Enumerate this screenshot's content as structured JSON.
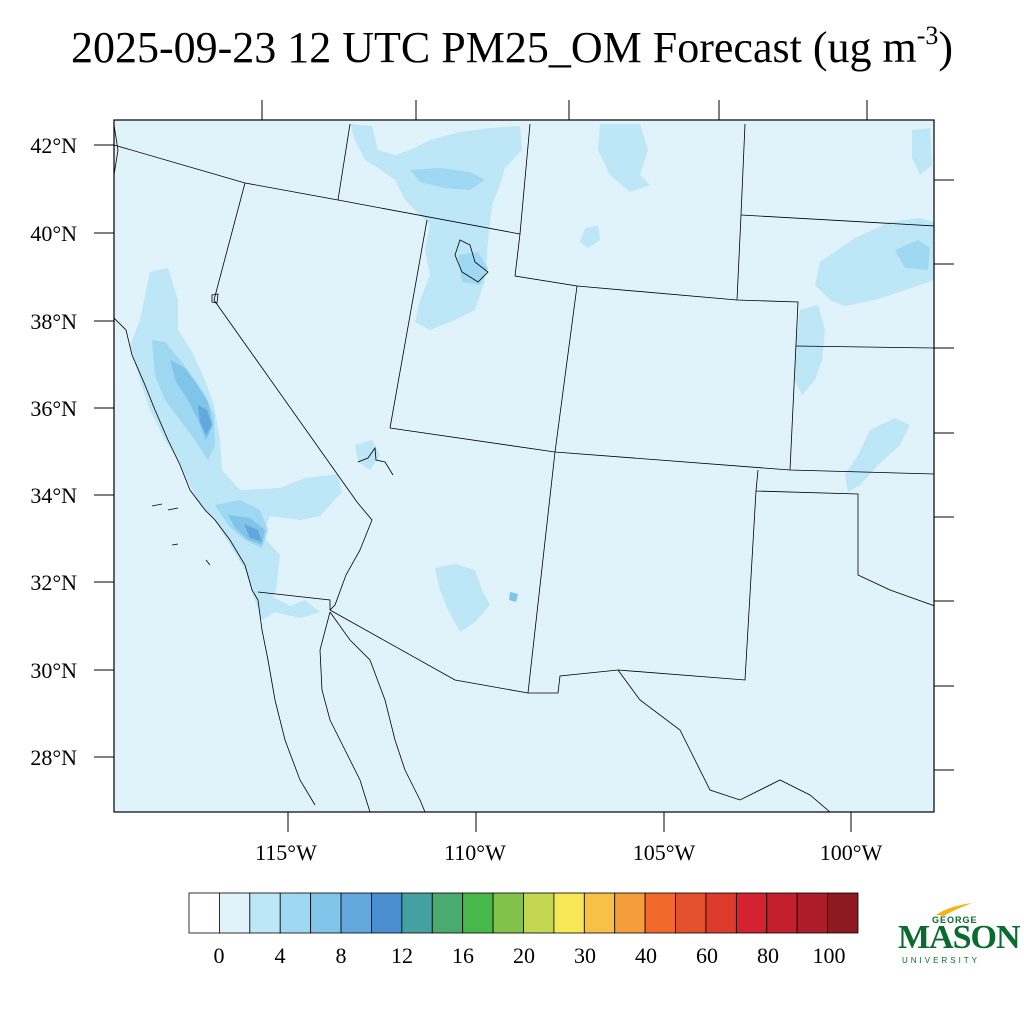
{
  "title": {
    "main": "2025-09-23 12 UTC PM25_OM Forecast (ug m",
    "exponent": "-3",
    "close": ")"
  },
  "map": {
    "lat_labels": [
      "42°N",
      "40°N",
      "38°N",
      "36°N",
      "34°N",
      "32°N",
      "30°N",
      "28°N"
    ],
    "lon_labels": [
      "115°W",
      "110°W",
      "105°W",
      "100°W"
    ],
    "background_color": "#e0f3fb"
  },
  "colorbar": {
    "colors": [
      "#ffffff",
      "#e0f3fb",
      "#bde6f6",
      "#9fd8f3",
      "#80c4ea",
      "#63a8dc",
      "#4b8ecf",
      "#45a0a1",
      "#4aab6e",
      "#48b84a",
      "#82c24a",
      "#c3d752",
      "#f5e757",
      "#f8c046",
      "#f59d3a",
      "#f16a2b",
      "#e4502c",
      "#dc3b2b",
      "#d52230",
      "#c41f2d",
      "#ad1c29",
      "#8c1a20"
    ],
    "labels": [
      "0",
      "4",
      "8",
      "12",
      "16",
      "20",
      "30",
      "40",
      "60",
      "80",
      "100"
    ]
  },
  "logo": {
    "line1": "GEORGE",
    "line2": "MASON",
    "line3": "UNIVERSITY"
  }
}
